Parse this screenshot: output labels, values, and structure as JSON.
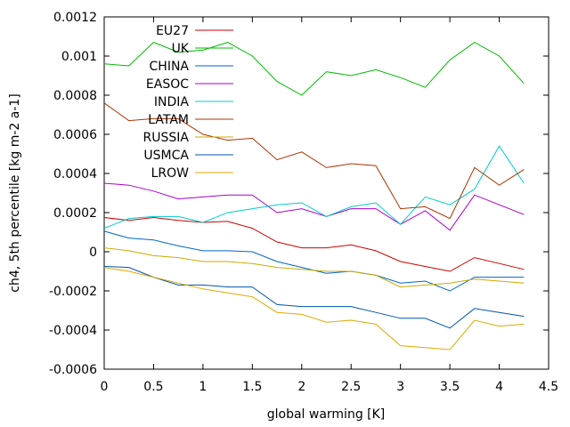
{
  "chart_data": {
    "type": "line",
    "title": "",
    "xlabel": "global warming [K]",
    "ylabel": "ch4, 5th percentile [kg m-2 a-1]",
    "xlim": [
      0,
      4.5
    ],
    "ylim": [
      -0.0006,
      0.0012
    ],
    "xticks": [
      0,
      0.5,
      1,
      1.5,
      2,
      2.5,
      3,
      3.5,
      4,
      4.5
    ],
    "xtick_labels": [
      "0",
      "0.5",
      "1",
      "1.5",
      "2",
      "2.5",
      "3",
      "3.5",
      "4",
      "4.5"
    ],
    "yticks": [
      -0.0006,
      -0.0004,
      -0.0002,
      0,
      0.0002,
      0.0004,
      0.0006,
      0.0008,
      0.001,
      0.0012
    ],
    "ytick_labels": [
      "-0.0006",
      "-0.0004",
      "-0.0002",
      "0",
      "0.0002",
      "0.0004",
      "0.0006",
      "0.0008",
      "0.001",
      "0.0012"
    ],
    "grid": false,
    "legend_position": "top-left",
    "x": [
      0,
      0.25,
      0.5,
      0.75,
      1,
      1.25,
      1.5,
      1.75,
      2,
      2.25,
      2.5,
      2.75,
      3,
      3.25,
      3.5,
      3.75,
      4,
      4.25
    ],
    "series": [
      {
        "name": "EU27",
        "color": "#cc0000",
        "values": [
          0.000175,
          0.00016,
          0.000175,
          0.00016,
          0.00015,
          0.000155,
          0.00012,
          5e-05,
          2e-05,
          2e-05,
          3.5e-05,
          5e-06,
          -5e-05,
          -7.5e-05,
          -0.0001,
          -3e-05,
          -6e-05,
          -9e-05
        ]
      },
      {
        "name": "UK",
        "color": "#00bb00",
        "values": [
          0.00096,
          0.00095,
          0.00107,
          0.00102,
          0.00103,
          0.00107,
          0.001,
          0.00087,
          0.0008,
          0.00092,
          0.0009,
          0.00093,
          0.00089,
          0.00084,
          0.00098,
          0.00107,
          0.001,
          0.00086
        ]
      },
      {
        "name": "CHINA",
        "color": "#0066cc",
        "values": [
          0.000105,
          7e-05,
          6e-05,
          3e-05,
          5e-06,
          5e-06,
          0,
          -5e-05,
          -8e-05,
          -0.00011,
          -0.0001,
          -0.00012,
          -0.00016,
          -0.00015,
          -0.0002,
          -0.00013,
          -0.00013,
          -0.00013
        ]
      },
      {
        "name": "EASOC",
        "color": "#aa00cc",
        "values": [
          0.00035,
          0.00034,
          0.00031,
          0.00027,
          0.00028,
          0.00029,
          0.00029,
          0.0002,
          0.00022,
          0.00018,
          0.00022,
          0.00022,
          0.00014,
          0.00021,
          0.00011,
          0.00029,
          0.00024,
          0.00019
        ]
      },
      {
        "name": "INDIA",
        "color": "#00cccc",
        "values": [
          0.00012,
          0.00017,
          0.00018,
          0.00018,
          0.00015,
          0.0002,
          0.00022,
          0.00024,
          0.00025,
          0.00018,
          0.00023,
          0.00025,
          0.00014,
          0.00028,
          0.00024,
          0.00032,
          0.00054,
          0.00035
        ]
      },
      {
        "name": "LATAM",
        "color": "#aa3300",
        "values": [
          0.00076,
          0.00067,
          0.00068,
          0.00068,
          0.0006,
          0.00057,
          0.00058,
          0.00047,
          0.00051,
          0.00043,
          0.00045,
          0.00044,
          0.00022,
          0.00023,
          0.00017,
          0.00043,
          0.00034,
          0.00042
        ]
      },
      {
        "name": "RUSSIA",
        "color": "#ccaa00",
        "values": [
          2e-05,
          5e-06,
          -2e-05,
          -3e-05,
          -5e-05,
          -5e-05,
          -6e-05,
          -8e-05,
          -9e-05,
          -0.0001,
          -0.0001,
          -0.00012,
          -0.00018,
          -0.00017,
          -0.00016,
          -0.00014,
          -0.00015,
          -0.00016
        ]
      },
      {
        "name": "USMCA",
        "color": "#0055aa",
        "values": [
          -7.5e-05,
          -8e-05,
          -0.00013,
          -0.00017,
          -0.00017,
          -0.00018,
          -0.00018,
          -0.00027,
          -0.00028,
          -0.00028,
          -0.00028,
          -0.00031,
          -0.00034,
          -0.00034,
          -0.00039,
          -0.00029,
          -0.00031,
          -0.00033
        ]
      },
      {
        "name": "LROW",
        "color": "#ddaa00",
        "values": [
          -8e-05,
          -0.0001,
          -0.00013,
          -0.00016,
          -0.00019,
          -0.00021,
          -0.00023,
          -0.00031,
          -0.00032,
          -0.00036,
          -0.00035,
          -0.00037,
          -0.00048,
          -0.00049,
          -0.0005,
          -0.00035,
          -0.00038,
          -0.00037
        ]
      }
    ]
  }
}
